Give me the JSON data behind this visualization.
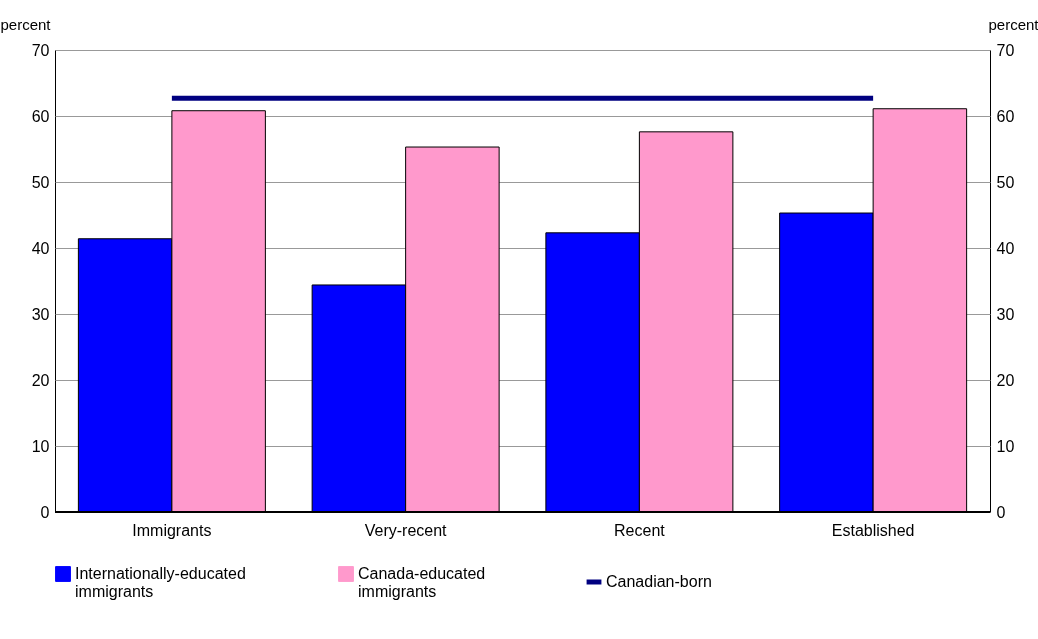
{
  "chart_data": {
    "type": "bar",
    "categories": [
      "Immigrants",
      "Very-recent",
      "Recent",
      "Established"
    ],
    "series": [
      {
        "name": "Internationally-educated immigrants",
        "color": "#0000ff",
        "values": [
          41.4,
          34.4,
          42.3,
          45.3
        ]
      },
      {
        "name": "Canada-educated immigrants",
        "color": "#ff99cc",
        "values": [
          60.8,
          55.3,
          57.6,
          61.1
        ]
      },
      {
        "name": "Canadian-born",
        "type": "line",
        "color": "#000080",
        "values": [
          62.7,
          62.7,
          62.7,
          62.7
        ]
      }
    ],
    "ylabel": "percent",
    "y2label": "percent",
    "ylim": [
      0,
      70
    ],
    "yticks": [
      0,
      10,
      20,
      30,
      40,
      50,
      60,
      70
    ],
    "y2lim": [
      0,
      70
    ],
    "y2ticks": [
      0,
      10,
      20,
      30,
      40,
      50,
      60,
      70
    ],
    "grid": "y",
    "legend": "bottom"
  }
}
